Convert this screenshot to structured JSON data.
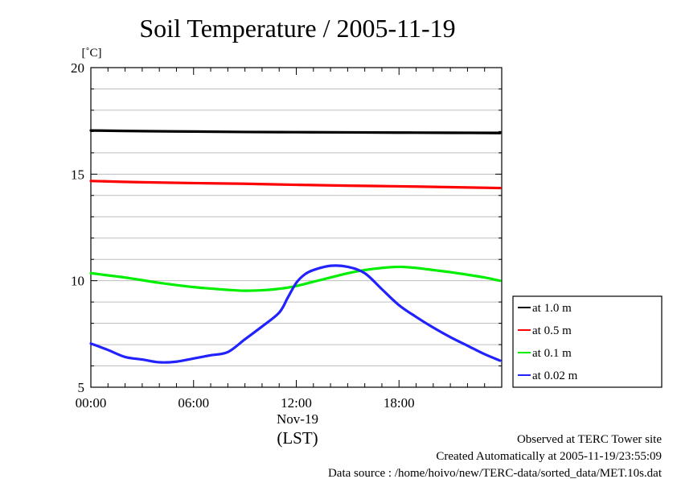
{
  "chart_data": {
    "type": "line",
    "title": "Soil Temperature / 2005-11-19",
    "ylabel": "[˚C]",
    "ylim": [
      5,
      20
    ],
    "xlim": [
      0,
      24
    ],
    "yticks": [
      5,
      10,
      15,
      20
    ],
    "xticks": [
      0,
      6,
      12,
      18
    ],
    "xtick_labels": [
      "00:00",
      "06:00",
      "12:00",
      "18:00"
    ],
    "x_sublabel": "Nov-19",
    "xlabel": "(LST)",
    "grid": true,
    "legend_position": "right",
    "series": [
      {
        "name": "at 1.0 m",
        "color": "#000000",
        "x": [
          0,
          3,
          6,
          9,
          12,
          15,
          18,
          21,
          23.9
        ],
        "y": [
          17.05,
          17.02,
          17.0,
          16.98,
          16.97,
          16.96,
          16.95,
          16.94,
          16.93
        ]
      },
      {
        "name": "at 0.5 m",
        "color": "#ff0000",
        "x": [
          0,
          3,
          6,
          9,
          12,
          15,
          18,
          21,
          23.9
        ],
        "y": [
          14.68,
          14.62,
          14.58,
          14.55,
          14.5,
          14.46,
          14.43,
          14.39,
          14.35
        ]
      },
      {
        "name": "at 0.1 m",
        "color": "#00ee00",
        "x": [
          0,
          2,
          4,
          6,
          8,
          9,
          10,
          11,
          12,
          13,
          14,
          15,
          16,
          17,
          18,
          19,
          20,
          21,
          22,
          23,
          23.9
        ],
        "y": [
          10.35,
          10.15,
          9.9,
          9.7,
          9.57,
          9.53,
          9.55,
          9.62,
          9.75,
          9.95,
          10.15,
          10.35,
          10.5,
          10.6,
          10.65,
          10.6,
          10.5,
          10.4,
          10.28,
          10.15,
          10.0
        ]
      },
      {
        "name": "at 0.02 m",
        "color": "#2222ff",
        "x": [
          0,
          1,
          2,
          3,
          4,
          5,
          6,
          7,
          8,
          9,
          10,
          11,
          11.5,
          12,
          12.5,
          13,
          14,
          15,
          16,
          17,
          18,
          19,
          20,
          21,
          22,
          23,
          23.9
        ],
        "y": [
          7.05,
          6.75,
          6.42,
          6.3,
          6.17,
          6.2,
          6.35,
          6.5,
          6.65,
          7.25,
          7.85,
          8.5,
          9.2,
          9.9,
          10.3,
          10.5,
          10.7,
          10.65,
          10.35,
          9.6,
          8.85,
          8.3,
          7.8,
          7.35,
          6.95,
          6.55,
          6.25
        ]
      }
    ]
  },
  "footer": {
    "line1": "Observed at TERC Tower site",
    "line2": "Created Automatically at 2005-11-19/23:55:09",
    "line3": "Data source : /home/hoivo/new/TERC-data/sorted_data/MET.10s.dat"
  }
}
